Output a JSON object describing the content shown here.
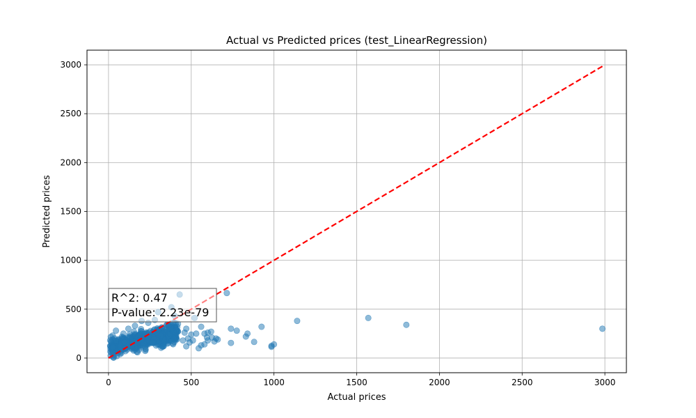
{
  "chart_data": {
    "type": "scatter",
    "title": "Actual vs Predicted prices (test_LinearRegression)",
    "xlabel": "Actual prices",
    "ylabel": "Predicted prices",
    "xlim": [
      -130,
      3130
    ],
    "ylim": [
      -150,
      3150
    ],
    "xticks": [
      0,
      500,
      1000,
      1500,
      2000,
      2500,
      3000
    ],
    "yticks": [
      0,
      500,
      1000,
      1500,
      2000,
      2500,
      3000
    ],
    "grid": true,
    "point_color": "#1f77b4",
    "point_alpha": 0.5,
    "reference_line": {
      "from": [
        0,
        0
      ],
      "to": [
        2990,
        2990
      ],
      "color": "#ff0000",
      "style": "dashed"
    },
    "annotation": {
      "lines": [
        "R^2: 0.47",
        "P-value: 2.23e-79"
      ],
      "position": "upper-left of cluster"
    },
    "cluster": {
      "x_range": [
        10,
        420
      ],
      "y_center_intercept": 110,
      "y_slope": 0.35,
      "y_spread": 70,
      "count": 650
    },
    "points": [
      [
        430,
        650
      ],
      [
        715,
        665
      ],
      [
        380,
        520
      ],
      [
        300,
        470
      ],
      [
        400,
        430
      ],
      [
        520,
        410
      ],
      [
        1570,
        410
      ],
      [
        1140,
        380
      ],
      [
        1800,
        340
      ],
      [
        2985,
        300
      ],
      [
        925,
        320
      ],
      [
        740,
        300
      ],
      [
        775,
        280
      ],
      [
        840,
        250
      ],
      [
        830,
        220
      ],
      [
        880,
        165
      ],
      [
        740,
        155
      ],
      [
        1000,
        140
      ],
      [
        985,
        115
      ],
      [
        985,
        125
      ],
      [
        560,
        320
      ],
      [
        600,
        260
      ],
      [
        620,
        270
      ],
      [
        580,
        250
      ],
      [
        650,
        200
      ],
      [
        660,
        190
      ],
      [
        640,
        170
      ],
      [
        595,
        210
      ],
      [
        560,
        130
      ],
      [
        580,
        140
      ],
      [
        545,
        100
      ],
      [
        470,
        300
      ],
      [
        460,
        260
      ],
      [
        480,
        200
      ],
      [
        450,
        180
      ],
      [
        420,
        350
      ],
      [
        500,
        240
      ],
      [
        530,
        250
      ],
      [
        510,
        180
      ],
      [
        490,
        160
      ],
      [
        470,
        120
      ],
      [
        600,
        180
      ],
      [
        625,
        210
      ],
      [
        15,
        170
      ],
      [
        30,
        5
      ],
      [
        50,
        20
      ],
      [
        70,
        40
      ],
      [
        45,
        280
      ],
      [
        25,
        230
      ],
      [
        90,
        250
      ],
      [
        120,
        300
      ],
      [
        160,
        330
      ],
      [
        200,
        380
      ],
      [
        240,
        360
      ],
      [
        280,
        390
      ]
    ]
  }
}
